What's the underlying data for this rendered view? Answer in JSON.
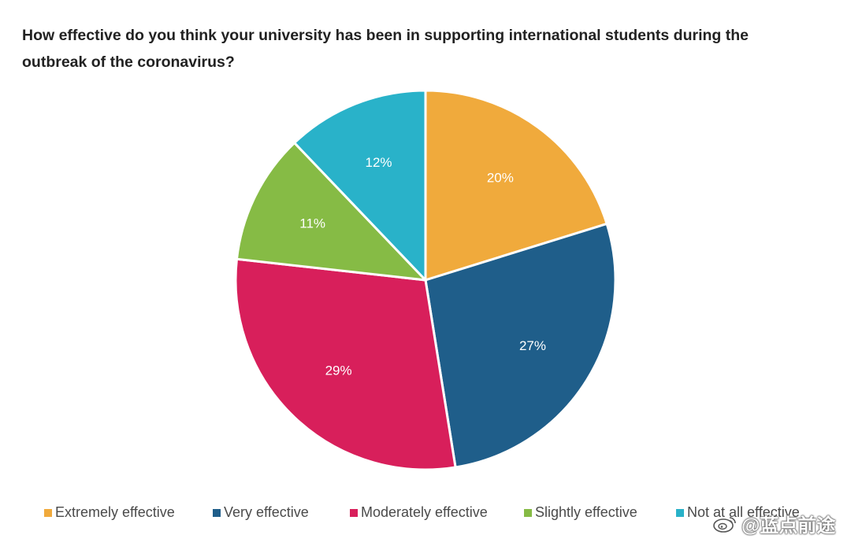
{
  "chart_data": {
    "type": "pie",
    "title": "How effective do you think your university has been in supporting international students during the outbreak of the coronavirus?",
    "slices": [
      {
        "label": "Extremely effective",
        "value": 20,
        "display": "20%",
        "color": "#f0aa3c"
      },
      {
        "label": "Very effective",
        "value": 27,
        "display": "27%",
        "color": "#1f5e8a"
      },
      {
        "label": "Moderately effective",
        "value": 29,
        "display": "29%",
        "color": "#d81f5b"
      },
      {
        "label": "Slightly effective",
        "value": 11,
        "display": "11%",
        "color": "#86bb45"
      },
      {
        "label": "Not at all effective",
        "value": 12,
        "display": "12%",
        "color": "#29b2c9"
      }
    ],
    "legend_position": "bottom",
    "label_color": "#ffffff"
  },
  "watermark": {
    "text": "@蓝点前途",
    "icon": "weibo-icon"
  }
}
